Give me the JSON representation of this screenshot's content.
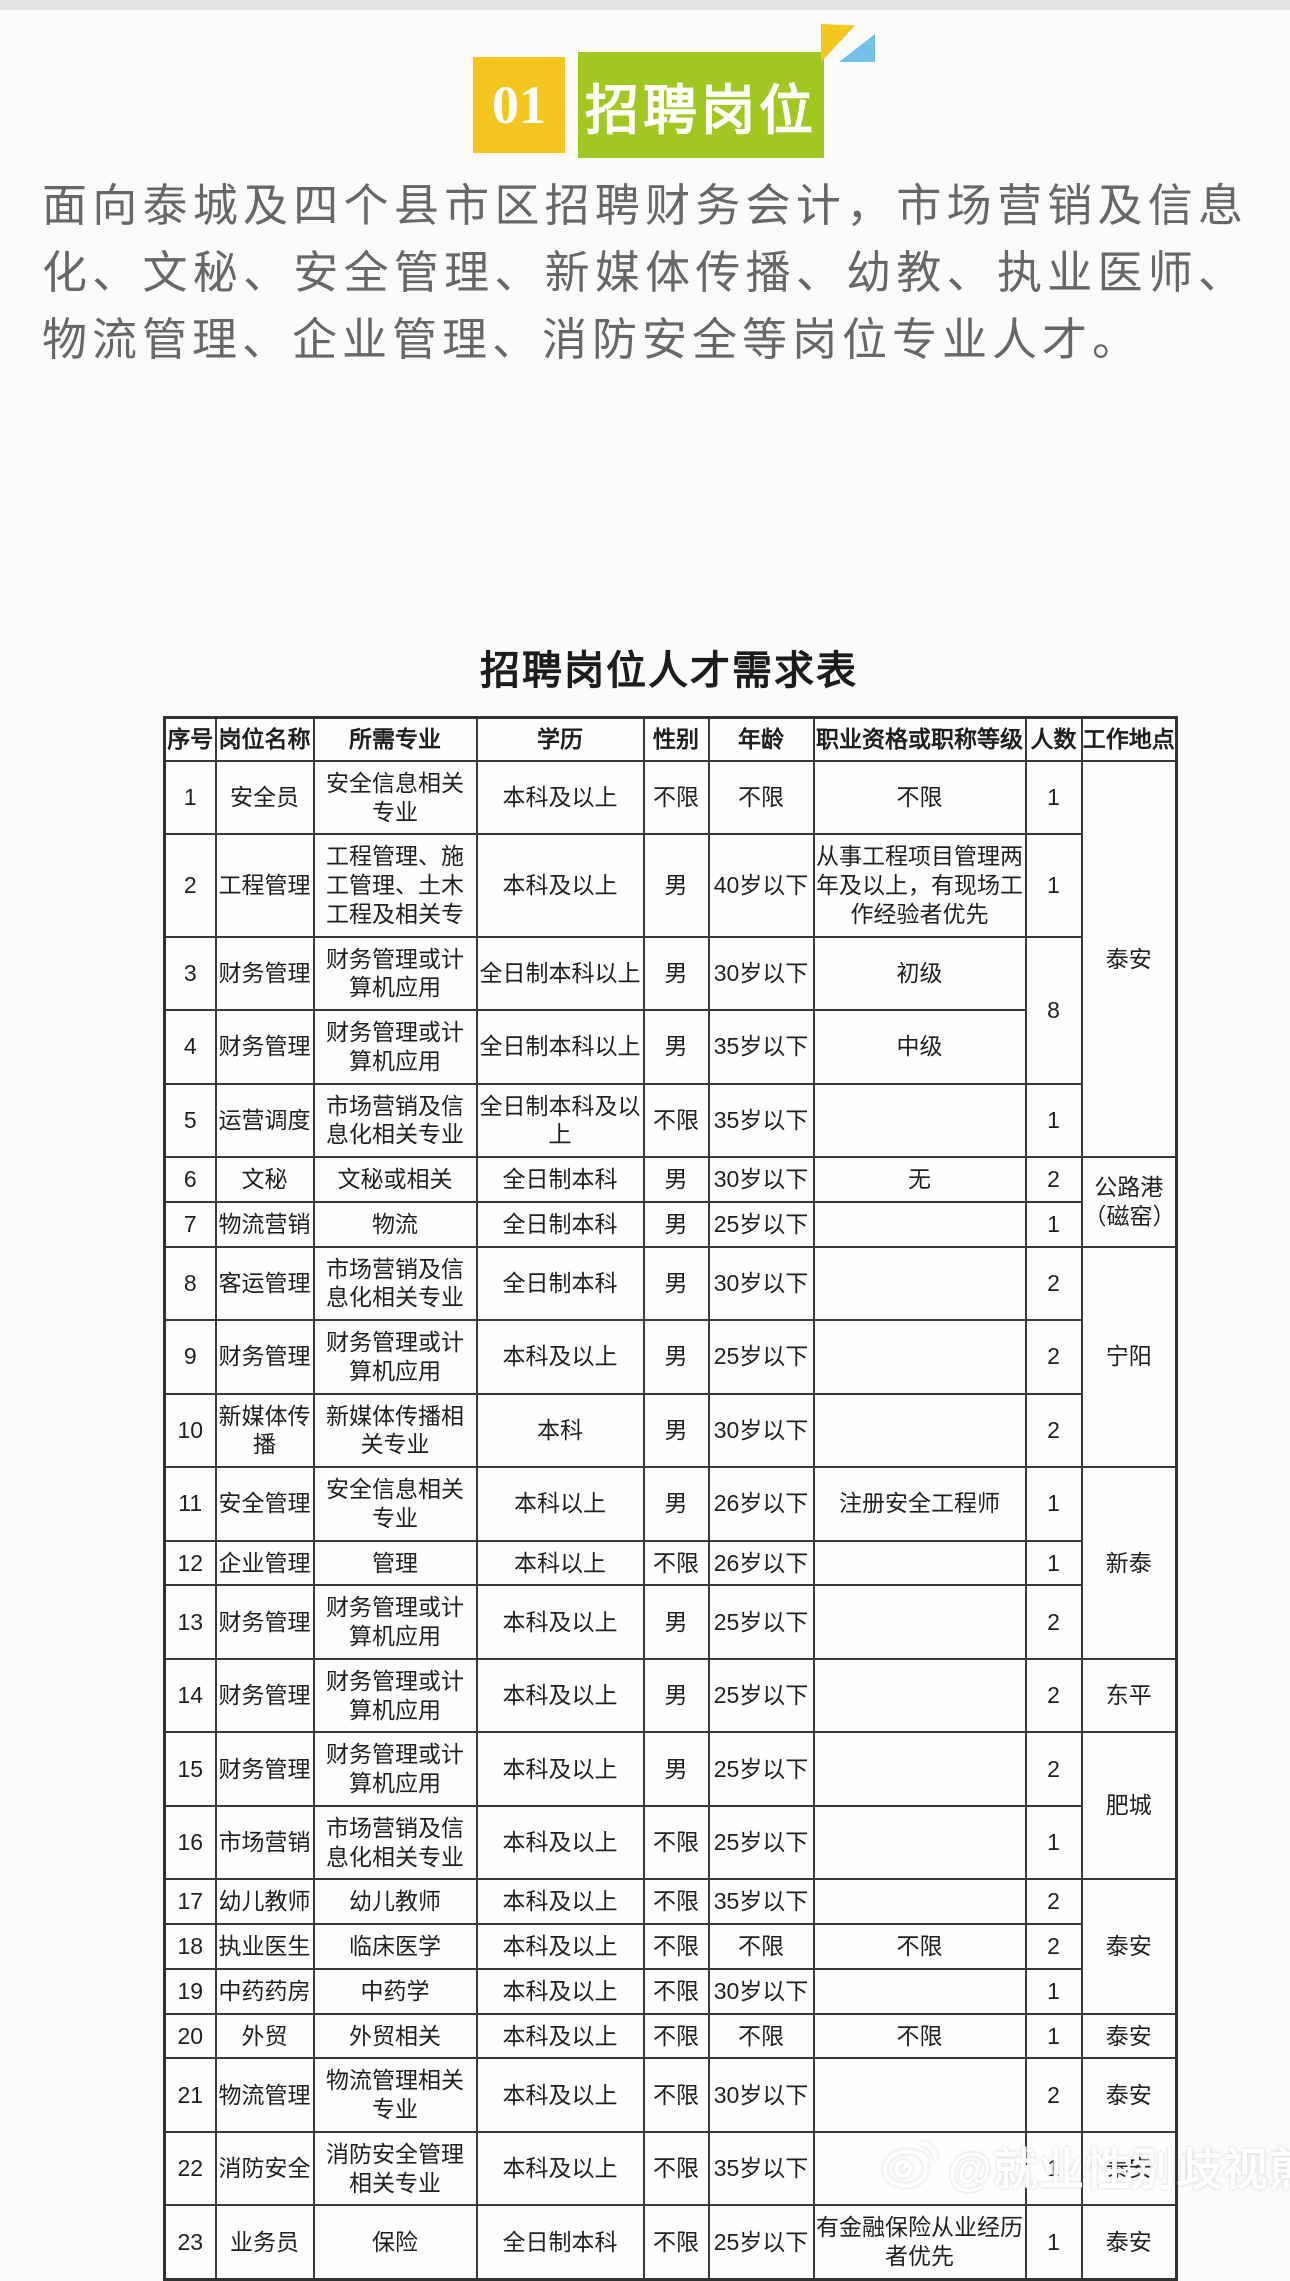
{
  "header": {
    "number": "01",
    "title": "招聘岗位",
    "colors": {
      "yellow": "#f5c520",
      "green": "#a1c821",
      "blue": "#75c0e8"
    }
  },
  "intro": "面向泰城及四个县市区招聘财务会计，市场营销及信息化、文秘、安全管理、新媒体传播、幼教、执业医师、物流管理、企业管理、消防安全等岗位专业人才。",
  "table": {
    "title": "招聘岗位人才需求表",
    "columns": [
      "序号",
      "岗位名称",
      "所需专业",
      "学历",
      "性别",
      "年龄",
      "职业资格或职称等级",
      "人数",
      "工作地点"
    ],
    "rows": [
      {
        "no": "1",
        "position": "安全员",
        "major": "安全信息相关专业",
        "education": "本科及以上",
        "gender": "不限",
        "age": "不限",
        "qual": "不限",
        "count": "1",
        "count_span": 1,
        "location": "泰安",
        "location_span": 5
      },
      {
        "no": "2",
        "position": "工程管理",
        "major": "工程管理、施工管理、土木工程及相关专",
        "education": "本科及以上",
        "gender": "男",
        "age": "40岁以下",
        "qual": "从事工程项目管理两年及以上，有现场工作经验者优先",
        "count": "1",
        "count_span": 1,
        "location": "",
        "location_span": 0
      },
      {
        "no": "3",
        "position": "财务管理",
        "major": "财务管理或计算机应用",
        "education": "全日制本科以上",
        "gender": "男",
        "age": "30岁以下",
        "qual": "初级",
        "count": "8",
        "count_span": 2,
        "location": "",
        "location_span": 0
      },
      {
        "no": "4",
        "position": "财务管理",
        "major": "财务管理或计算机应用",
        "education": "全日制本科以上",
        "gender": "男",
        "age": "35岁以下",
        "qual": "中级",
        "count": "",
        "count_span": 0,
        "location": "",
        "location_span": 0
      },
      {
        "no": "5",
        "position": "运营调度",
        "major": "市场营销及信息化相关专业",
        "education": "全日制本科及以上",
        "gender": "不限",
        "age": "35岁以下",
        "qual": "",
        "count": "1",
        "count_span": 1,
        "location": "",
        "location_span": 0
      },
      {
        "no": "6",
        "position": "文秘",
        "major": "文秘或相关",
        "education": "全日制本科",
        "gender": "男",
        "age": "30岁以下",
        "qual": "无",
        "count": "2",
        "count_span": 1,
        "location": "公路港（磁窑）",
        "location_span": 2
      },
      {
        "no": "7",
        "position": "物流营销",
        "major": "物流",
        "education": "全日制本科",
        "gender": "男",
        "age": "25岁以下",
        "qual": "",
        "count": "1",
        "count_span": 1,
        "location": "",
        "location_span": 0
      },
      {
        "no": "8",
        "position": "客运管理",
        "major": "市场营销及信息化相关专业",
        "education": "全日制本科",
        "gender": "男",
        "age": "30岁以下",
        "qual": "",
        "count": "2",
        "count_span": 1,
        "location": "宁阳",
        "location_span": 3
      },
      {
        "no": "9",
        "position": "财务管理",
        "major": "财务管理或计算机应用",
        "education": "本科及以上",
        "gender": "男",
        "age": "25岁以下",
        "qual": "",
        "count": "2",
        "count_span": 1,
        "location": "",
        "location_span": 0
      },
      {
        "no": "10",
        "position": "新媒体传播",
        "major": "新媒体传播相关专业",
        "education": "本科",
        "gender": "男",
        "age": "30岁以下",
        "qual": "",
        "count": "2",
        "count_span": 1,
        "location": "",
        "location_span": 0
      },
      {
        "no": "11",
        "position": "安全管理",
        "major": "安全信息相关专业",
        "education": "本科以上",
        "gender": "男",
        "age": "26岁以下",
        "qual": "注册安全工程师",
        "count": "1",
        "count_span": 1,
        "location": "新泰",
        "location_span": 3
      },
      {
        "no": "12",
        "position": "企业管理",
        "major": "管理",
        "education": "本科以上",
        "gender": "不限",
        "age": "26岁以下",
        "qual": "",
        "count": "1",
        "count_span": 1,
        "location": "",
        "location_span": 0
      },
      {
        "no": "13",
        "position": "财务管理",
        "major": "财务管理或计算机应用",
        "education": "本科及以上",
        "gender": "男",
        "age": "25岁以下",
        "qual": "",
        "count": "2",
        "count_span": 1,
        "location": "",
        "location_span": 0
      },
      {
        "no": "14",
        "position": "财务管理",
        "major": "财务管理或计算机应用",
        "education": "本科及以上",
        "gender": "男",
        "age": "25岁以下",
        "qual": "",
        "count": "2",
        "count_span": 1,
        "location": "东平",
        "location_span": 1
      },
      {
        "no": "15",
        "position": "财务管理",
        "major": "财务管理或计算机应用",
        "education": "本科及以上",
        "gender": "男",
        "age": "25岁以下",
        "qual": "",
        "count": "2",
        "count_span": 1,
        "location": "肥城",
        "location_span": 2
      },
      {
        "no": "16",
        "position": "市场营销",
        "major": "市场营销及信息化相关专业",
        "education": "本科及以上",
        "gender": "不限",
        "age": "25岁以下",
        "qual": "",
        "count": "1",
        "count_span": 1,
        "location": "",
        "location_span": 0
      },
      {
        "no": "17",
        "position": "幼儿教师",
        "major": "幼儿教师",
        "education": "本科及以上",
        "gender": "不限",
        "age": "35岁以下",
        "qual": "",
        "count": "2",
        "count_span": 1,
        "location": "泰安",
        "location_span": 3
      },
      {
        "no": "18",
        "position": "执业医生",
        "major": "临床医学",
        "education": "本科及以上",
        "gender": "不限",
        "age": "不限",
        "qual": "不限",
        "count": "2",
        "count_span": 1,
        "location": "",
        "location_span": 0
      },
      {
        "no": "19",
        "position": "中药药房",
        "major": "中药学",
        "education": "本科及以上",
        "gender": "不限",
        "age": "30岁以下",
        "qual": "",
        "count": "1",
        "count_span": 1,
        "location": "",
        "location_span": 0
      },
      {
        "no": "20",
        "position": "外贸",
        "major": "外贸相关",
        "education": "本科及以上",
        "gender": "不限",
        "age": "不限",
        "qual": "不限",
        "count": "1",
        "count_span": 1,
        "location": "泰安",
        "location_span": 1
      },
      {
        "no": "21",
        "position": "物流管理",
        "major": "物流管理相关专业",
        "education": "本科及以上",
        "gender": "不限",
        "age": "30岁以下",
        "qual": "",
        "count": "2",
        "count_span": 1,
        "location": "泰安",
        "location_span": 1
      },
      {
        "no": "22",
        "position": "消防安全",
        "major": "消防安全管理相关专业",
        "education": "本科及以上",
        "gender": "不限",
        "age": "35岁以下",
        "qual": "",
        "count": "1",
        "count_span": 1,
        "location": "泰安",
        "location_span": 1
      },
      {
        "no": "23",
        "position": "业务员",
        "major": "保险",
        "education": "全日制本科",
        "gender": "不限",
        "age": "25岁以下",
        "qual": "有金融保险从业经历者优先",
        "count": "1",
        "count_span": 1,
        "location": "泰安",
        "location_span": 1
      }
    ]
  },
  "watermark": {
    "text": "@就业性别歧视煎茶队",
    "icon": "weibo-logo-icon"
  }
}
